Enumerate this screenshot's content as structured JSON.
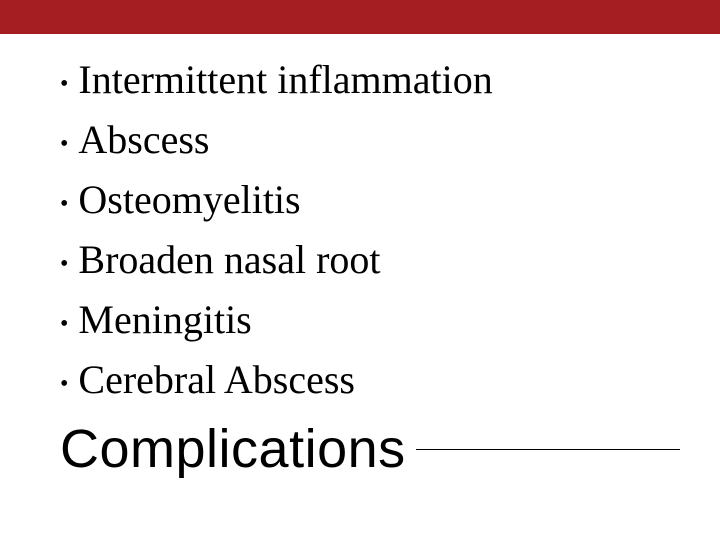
{
  "layout": {
    "top_bar_height": 34,
    "top_bar_color": "#a41e22",
    "background_color": "#ffffff"
  },
  "bullets": {
    "items": [
      {
        "text": "Intermittent inflammation"
      },
      {
        "text": "Abscess"
      },
      {
        "text": "Osteomyelitis"
      },
      {
        "text": "Broaden nasal root"
      },
      {
        "text": "Meningitis"
      },
      {
        "text": "Cerebral Abscess"
      }
    ],
    "font_size": 40,
    "line_height": 56,
    "text_color": "#000000",
    "bullet_color": "#000000"
  },
  "title": {
    "text": "Complications",
    "font_size": 54,
    "text_color": "#000000",
    "line_color": "#000000"
  }
}
